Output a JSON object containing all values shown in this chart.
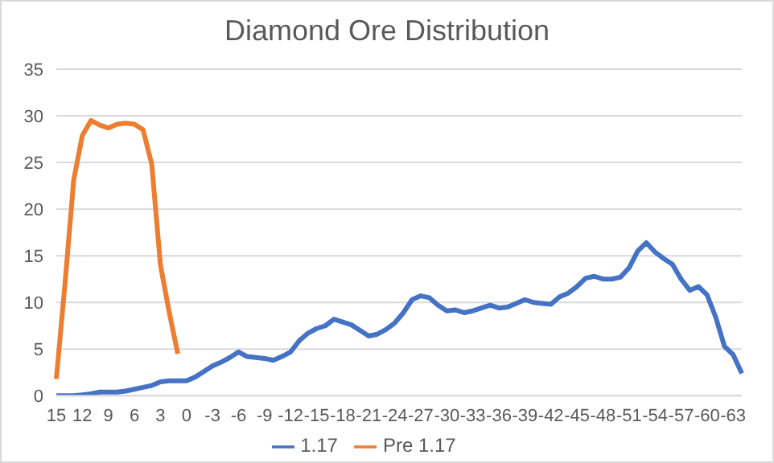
{
  "chart_data": {
    "type": "line",
    "title": "Diamond Ore Distribution",
    "categories": [
      "15",
      null,
      null,
      "12",
      null,
      null,
      "9",
      null,
      null,
      "6",
      null,
      null,
      "3",
      null,
      null,
      "0",
      null,
      null,
      "-3",
      null,
      null,
      "-6",
      null,
      null,
      "-9",
      null,
      null,
      "-12",
      null,
      null,
      "-15",
      null,
      null,
      "-18",
      null,
      null,
      "-21",
      null,
      null,
      "-24",
      null,
      null,
      "-27",
      null,
      null,
      "-30",
      null,
      null,
      "-33",
      null,
      null,
      "-36",
      null,
      null,
      "-39",
      null,
      null,
      "-42",
      null,
      null,
      "-45",
      null,
      null,
      "-48",
      null,
      null,
      "-51",
      null,
      null,
      "-54",
      null,
      null,
      "-57",
      null,
      null,
      "-60",
      null,
      null,
      "-63",
      null
    ],
    "series": [
      {
        "name": "1.17",
        "color": "#4472c4",
        "values": [
          0,
          0,
          0,
          0.1,
          0.2,
          0.4,
          0.4,
          0.4,
          0.5,
          0.7,
          0.9,
          1.1,
          1.5,
          1.6,
          1.6,
          1.6,
          2.0,
          2.6,
          3.2,
          3.6,
          4.1,
          4.7,
          4.2,
          4.1,
          4.0,
          3.8,
          4.2,
          4.7,
          5.9,
          6.7,
          7.2,
          7.5,
          8.2,
          7.9,
          7.6,
          7.0,
          6.4,
          6.6,
          7.1,
          7.8,
          8.9,
          10.3,
          10.7,
          10.5,
          9.7,
          9.1,
          9.2,
          8.9,
          9.1,
          9.4,
          9.7,
          9.4,
          9.5,
          9.9,
          10.3,
          10.0,
          9.9,
          9.8,
          10.6,
          11.0,
          11.7,
          12.6,
          12.8,
          12.5,
          12.5,
          12.7,
          13.7,
          15.5,
          16.4,
          15.4,
          14.7,
          14.1,
          12.5,
          11.3,
          11.7,
          10.8,
          8.4,
          5.3,
          4.4,
          2.4
        ]
      },
      {
        "name": "Pre 1.17",
        "color": "#ed7d31",
        "values": [
          1.8,
          12,
          23.1,
          27.9,
          29.5,
          29.0,
          28.7,
          29.1,
          29.2,
          29.1,
          28.5,
          24.8,
          14.0,
          9.0,
          4.5,
          null,
          null,
          null,
          null,
          null,
          null,
          null,
          null,
          null,
          null,
          null,
          null,
          null,
          null,
          null,
          null,
          null,
          null,
          null,
          null,
          null,
          null,
          null,
          null,
          null,
          null,
          null,
          null,
          null,
          null,
          null,
          null,
          null,
          null,
          null,
          null,
          null,
          null,
          null,
          null,
          null,
          null,
          null,
          null,
          null,
          null,
          null,
          null,
          null,
          null,
          null,
          null,
          null,
          null,
          null,
          null,
          null,
          null,
          null,
          null,
          null,
          null,
          null,
          null,
          null
        ]
      }
    ],
    "ylim": [
      0,
      35
    ],
    "yticks": [
      0,
      5,
      10,
      15,
      20,
      25,
      30,
      35
    ],
    "grid": "y",
    "legend": "bottom",
    "marker": "none",
    "line_style": "solid"
  }
}
